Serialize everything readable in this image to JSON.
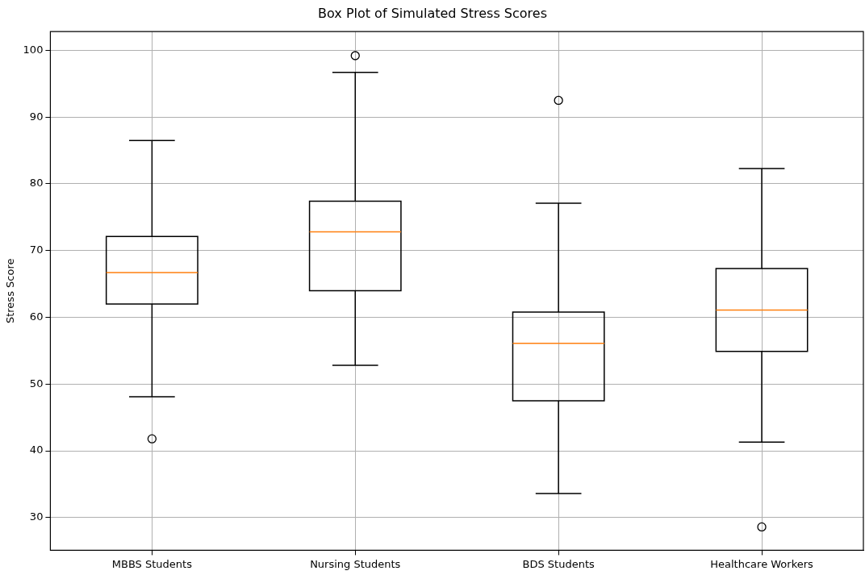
{
  "chart_data": {
    "type": "box",
    "title": "Box Plot of Simulated Stress Scores",
    "ylabel": "Stress Score",
    "categories": [
      "MBBS Students",
      "Nursing Students",
      "BDS Students",
      "Healthcare Workers"
    ],
    "boxes": [
      {
        "low": 48.1,
        "q1": 62.0,
        "median": 66.7,
        "q3": 72.1,
        "high": 86.5,
        "outliers": [
          41.8
        ]
      },
      {
        "low": 52.8,
        "q1": 64.0,
        "median": 72.8,
        "q3": 77.4,
        "high": 96.7,
        "outliers": [
          99.2
        ]
      },
      {
        "low": 33.6,
        "q1": 47.5,
        "median": 56.1,
        "q3": 60.8,
        "high": 77.1,
        "outliers": [
          92.5
        ]
      },
      {
        "low": 41.3,
        "q1": 54.9,
        "median": 61.1,
        "q3": 67.3,
        "high": 82.3,
        "outliers": [
          28.6
        ]
      }
    ],
    "color": "#000000",
    "ylim": [
      25.1,
      102.8
    ],
    "yticks": [
      30,
      40,
      50,
      60,
      70,
      80,
      90,
      100
    ],
    "grid": true,
    "legend": false
  }
}
